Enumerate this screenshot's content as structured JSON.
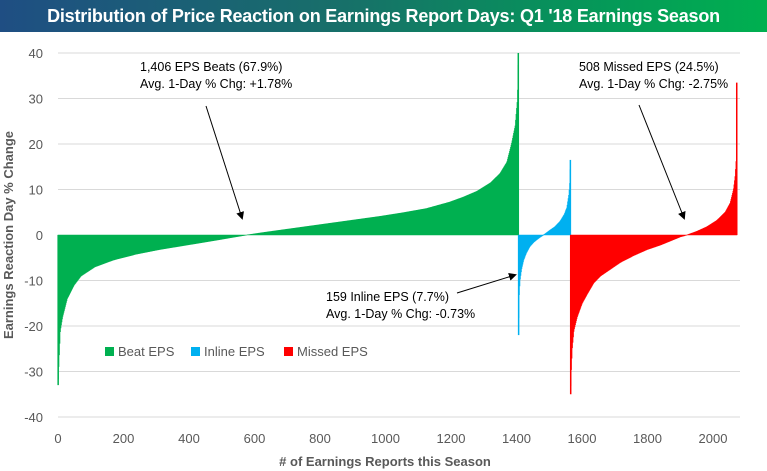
{
  "title": "Distribution of Price Reaction on Earnings Report Days: Q1 '18 Earnings Season",
  "chart_data": {
    "type": "area",
    "title": "Distribution of Price Reaction on Earnings Report Days: Q1 '18 Earnings Season",
    "xlabel": "# of Earnings Reports this Season",
    "ylabel": "Earnings Reaction Day % Change",
    "xlim": [
      0,
      2080
    ],
    "ylim": [
      -40,
      40
    ],
    "x_ticks": [
      0,
      200,
      400,
      600,
      800,
      1000,
      1200,
      1400,
      1600,
      1800,
      2000
    ],
    "y_ticks": [
      40,
      30,
      20,
      10,
      0,
      -10,
      -20,
      -30,
      -40
    ],
    "grid": "horizontal",
    "legend_position": "bottom-left inside",
    "series": [
      {
        "name": "Beat EPS",
        "color": "#00b050",
        "x_start": 0,
        "count": 1406,
        "sorted_values_at_quantiles": {
          "q": [
            0,
            0.002,
            0.005,
            0.01,
            0.02,
            0.035,
            0.05,
            0.08,
            0.12,
            0.17,
            0.22,
            0.28,
            0.34,
            0.38,
            0.41,
            0.45,
            0.5,
            0.55,
            0.6,
            0.65,
            0.7,
            0.75,
            0.8,
            0.85,
            0.88,
            0.91,
            0.94,
            0.96,
            0.975,
            0.985,
            0.993,
            0.998,
            1
          ],
          "v": [
            -33,
            -28,
            -21,
            -18,
            -14,
            -11,
            -9,
            -7,
            -5.5,
            -4.2,
            -3.2,
            -2.2,
            -1.2,
            -0.5,
            0,
            0.6,
            1.3,
            2.0,
            2.7,
            3.4,
            4.1,
            4.9,
            5.8,
            7.2,
            8.3,
            9.6,
            11.5,
            13.5,
            16,
            20,
            24,
            30,
            40
          ]
        },
        "annotation": [
          "1,406 EPS Beats (67.9%)",
          "Avg. 1-Day % Chg: +1.78%"
        ]
      },
      {
        "name": "Inline EPS",
        "color": "#00b0f0",
        "x_start": 1406,
        "count": 159,
        "sorted_values_at_quantiles": {
          "q": [
            0,
            0.01,
            0.03,
            0.06,
            0.1,
            0.15,
            0.22,
            0.3,
            0.4,
            0.48,
            0.52,
            0.6,
            0.7,
            0.8,
            0.88,
            0.93,
            0.97,
            0.99,
            1
          ],
          "v": [
            -22,
            -14,
            -10,
            -7.5,
            -5.5,
            -4,
            -2.5,
            -1.5,
            -0.6,
            0,
            0.3,
            1,
            1.8,
            3,
            4.5,
            6,
            9,
            12,
            16.5
          ]
        },
        "annotation": [
          "159 Inline EPS (7.7%)",
          "Avg. 1-Day % Chg: -0.73%"
        ]
      },
      {
        "name": "Missed EPS",
        "color": "#ff0000",
        "x_start": 1565,
        "count": 508,
        "sorted_values_at_quantiles": {
          "q": [
            0,
            0.004,
            0.01,
            0.02,
            0.04,
            0.07,
            0.1,
            0.14,
            0.18,
            0.24,
            0.3,
            0.38,
            0.46,
            0.54,
            0.62,
            0.66,
            0.7,
            0.76,
            0.82,
            0.88,
            0.93,
            0.96,
            0.98,
            0.99,
            0.997,
            1
          ],
          "v": [
            -35,
            -30,
            -25,
            -21,
            -18,
            -15,
            -13,
            -10.5,
            -9,
            -7.5,
            -6,
            -4.5,
            -3.2,
            -2.2,
            -1,
            -0.4,
            0,
            0.8,
            1.8,
            3.2,
            5,
            7,
            10,
            13,
            17,
            33.5
          ]
        },
        "annotation": [
          "508 Missed EPS (24.5%)",
          "Avg. 1-Day % Chg: -2.75%"
        ]
      }
    ]
  },
  "legend": [
    {
      "label": "Beat EPS",
      "color": "#00b050"
    },
    {
      "label": "Inline EPS",
      "color": "#00b0f0"
    },
    {
      "label": "Missed EPS",
      "color": "#ff0000"
    }
  ]
}
